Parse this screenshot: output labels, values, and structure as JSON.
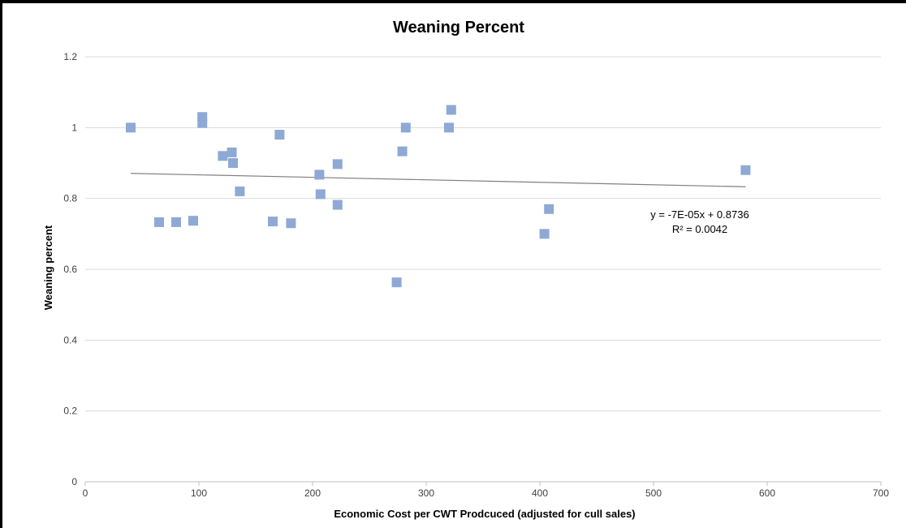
{
  "chart_data": {
    "type": "scatter",
    "title": "Weaning Percent",
    "xlabel": "Economic Cost per CWT Prodcuced (adjusted for cull sales)",
    "ylabel": "Weaning percent",
    "xlim": [
      0,
      700
    ],
    "ylim": [
      0,
      1.2
    ],
    "x_ticks": [
      "0",
      "100",
      "200",
      "300",
      "400",
      "500",
      "600",
      "700"
    ],
    "y_ticks": [
      "0",
      "0.2",
      "0.4",
      "0.6",
      "0.8",
      "1",
      "1.2"
    ],
    "grid": "horizontal",
    "marker_color": "#8ea9d6",
    "trendline_color": "#808080",
    "series": [
      {
        "points": [
          [
            40,
            1.0
          ],
          [
            65,
            0.733
          ],
          [
            80,
            0.733
          ],
          [
            95,
            0.737
          ],
          [
            103,
            1.03
          ],
          [
            103,
            1.013
          ],
          [
            121,
            0.92
          ],
          [
            129,
            0.93
          ],
          [
            130,
            0.9
          ],
          [
            136,
            0.82
          ],
          [
            165,
            0.735
          ],
          [
            171,
            0.98
          ],
          [
            181,
            0.73
          ],
          [
            206,
            0.867
          ],
          [
            207,
            0.812
          ],
          [
            222,
            0.897
          ],
          [
            222,
            0.782
          ],
          [
            274,
            0.563
          ],
          [
            279,
            0.933
          ],
          [
            282,
            1.0
          ],
          [
            320,
            1.0
          ],
          [
            322,
            1.05
          ],
          [
            404,
            0.7
          ],
          [
            408,
            0.77
          ],
          [
            581,
            0.88
          ]
        ]
      }
    ],
    "trendline": {
      "x_range": [
        40,
        581
      ],
      "slope": -7e-05,
      "intercept": 0.8736,
      "equation": "y = -7E-05x + 0.8736",
      "r_squared": "R² = 0.0042"
    }
  }
}
